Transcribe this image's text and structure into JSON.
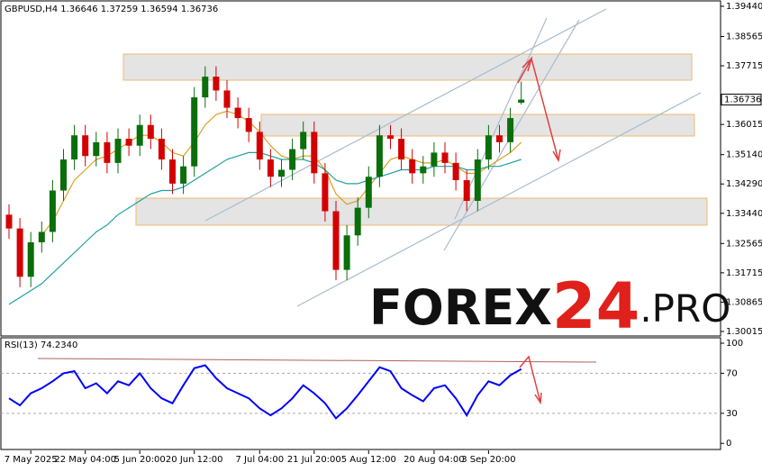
{
  "chart_data": [
    {
      "type": "candlestick",
      "title": "GBPUSD,H4  1.36646 1.37259 1.36594 1.36736",
      "categories": [
        null,
        null,
        "7 May 2025",
        null,
        null,
        null,
        null,
        "22 May 04:00",
        null,
        null,
        null,
        null,
        "5 Jun 20:00",
        null,
        null,
        null,
        null,
        "20 Jun 12:00",
        null,
        null,
        null,
        null,
        null,
        "7 Jul 04:00",
        null,
        null,
        null,
        null,
        "21 Jul 20:00",
        null,
        null,
        null,
        null,
        "5 Aug 12:00",
        null,
        null,
        null,
        null,
        null,
        "20 Aug 04:00",
        null,
        null,
        null,
        null,
        "3 Sep 20:00",
        null,
        null,
        null
      ],
      "open": [
        1.334,
        1.33,
        1.316,
        1.326,
        1.329,
        1.341,
        1.35,
        1.357,
        1.351,
        1.355,
        1.349,
        1.356,
        1.354,
        1.36,
        1.356,
        1.35,
        1.343,
        1.348,
        1.368,
        1.374,
        1.37,
        1.365,
        1.362,
        1.358,
        1.35,
        1.345,
        1.347,
        1.353,
        1.358,
        1.346,
        1.335,
        1.318,
        1.328,
        1.336,
        1.345,
        1.357,
        1.356,
        1.35,
        1.346,
        1.348,
        1.352,
        1.349,
        1.344,
        1.338,
        1.35,
        1.357,
        1.355,
        1.36646
      ],
      "high": [
        1.337,
        1.333,
        1.329,
        1.332,
        1.344,
        1.353,
        1.36,
        1.36,
        1.358,
        1.358,
        1.359,
        1.359,
        1.363,
        1.363,
        1.359,
        1.353,
        1.351,
        1.371,
        1.377,
        1.377,
        1.373,
        1.368,
        1.365,
        1.361,
        1.353,
        1.35,
        1.356,
        1.361,
        1.361,
        1.349,
        1.338,
        1.331,
        1.339,
        1.348,
        1.36,
        1.36,
        1.359,
        1.353,
        1.351,
        1.355,
        1.355,
        1.352,
        1.347,
        1.353,
        1.36,
        1.36,
        1.365,
        1.37259
      ],
      "low": [
        1.327,
        1.313,
        1.313,
        1.323,
        1.326,
        1.338,
        1.347,
        1.348,
        1.348,
        1.346,
        1.346,
        1.351,
        1.351,
        1.353,
        1.347,
        1.34,
        1.34,
        1.345,
        1.365,
        1.367,
        1.362,
        1.359,
        1.355,
        1.347,
        1.342,
        1.342,
        1.344,
        1.35,
        1.343,
        1.332,
        1.315,
        1.315,
        1.325,
        1.333,
        1.342,
        1.353,
        1.347,
        1.343,
        1.343,
        1.345,
        1.346,
        1.341,
        1.335,
        1.335,
        1.347,
        1.352,
        1.352,
        1.36594
      ],
      "close": [
        1.33,
        1.316,
        1.326,
        1.329,
        1.341,
        1.35,
        1.357,
        1.351,
        1.355,
        1.349,
        1.356,
        1.354,
        1.36,
        1.356,
        1.35,
        1.343,
        1.348,
        1.368,
        1.374,
        1.37,
        1.365,
        1.362,
        1.358,
        1.35,
        1.345,
        1.347,
        1.353,
        1.358,
        1.346,
        1.335,
        1.318,
        1.328,
        1.336,
        1.345,
        1.357,
        1.356,
        1.35,
        1.346,
        1.348,
        1.352,
        1.349,
        1.344,
        1.338,
        1.35,
        1.357,
        1.355,
        1.362,
        1.36736
      ],
      "up_color": "#0a6e0a",
      "down_color": "#d40000",
      "series": [
        {
          "color": "#d9a020",
          "values": [
            null,
            null,
            null,
            1.328,
            1.332,
            1.338,
            1.344,
            1.347,
            1.35,
            1.351,
            1.353,
            1.355,
            1.357,
            1.357,
            1.355,
            1.352,
            1.351,
            1.355,
            1.36,
            1.363,
            1.364,
            1.363,
            1.361,
            1.358,
            1.354,
            1.351,
            1.35,
            1.351,
            1.351,
            1.347,
            1.34,
            1.337,
            1.338,
            1.342,
            1.346,
            1.35,
            1.351,
            1.35,
            1.349,
            1.349,
            1.35,
            1.348,
            1.346,
            1.346,
            1.348,
            1.35,
            1.352,
            1.355
          ]
        },
        {
          "color": "#20a0a0",
          "values": [
            1.308,
            1.31,
            1.312,
            1.314,
            1.317,
            1.32,
            1.323,
            1.326,
            1.329,
            1.331,
            1.334,
            1.336,
            1.338,
            1.34,
            1.341,
            1.341,
            1.342,
            1.344,
            1.346,
            1.348,
            1.35,
            1.351,
            1.352,
            1.352,
            1.351,
            1.35,
            1.35,
            1.35,
            1.349,
            1.347,
            1.344,
            1.343,
            1.343,
            1.344,
            1.345,
            1.346,
            1.347,
            1.347,
            1.347,
            1.348,
            1.348,
            1.348,
            1.347,
            1.347,
            1.348,
            1.348,
            1.349,
            1.35
          ]
        }
      ],
      "ylim": [
        1.2991,
        1.3957
      ],
      "yticks": [
        {
          "value": 1.3944,
          "label": "1.39440"
        },
        {
          "value": 1.38565,
          "label": "1.38565"
        },
        {
          "value": 1.37715,
          "label": "1.37715"
        },
        {
          "value": 1.36015,
          "label": "1.36015"
        },
        {
          "value": 1.3514,
          "label": "1.35140"
        },
        {
          "value": 1.3429,
          "label": "1.34290"
        },
        {
          "value": 1.3344,
          "label": "1.33440"
        },
        {
          "value": 1.32565,
          "label": "1.32565"
        },
        {
          "value": 1.31715,
          "label": "1.31715"
        },
        {
          "value": 1.30865,
          "label": "1.30865"
        },
        {
          "value": 1.30015,
          "label": "1.30015"
        }
      ],
      "price_tag": {
        "value": 1.36736,
        "label": "1.36736"
      }
    },
    {
      "type": "line",
      "title": "RSI(13) 74.2340",
      "series": [
        {
          "color": "#0000ff",
          "values": [
            45,
            38,
            50,
            55,
            62,
            70,
            72,
            55,
            60,
            50,
            62,
            58,
            70,
            55,
            45,
            40,
            58,
            75,
            78,
            65,
            55,
            50,
            45,
            35,
            28,
            35,
            45,
            58,
            50,
            40,
            25,
            35,
            48,
            62,
            76,
            72,
            55,
            48,
            42,
            55,
            58,
            45,
            28,
            48,
            62,
            58,
            68,
            74.234
          ]
        }
      ],
      "ylim": [
        -7,
        105.4
      ],
      "yticks": [
        100,
        70,
        30,
        0
      ],
      "levels": [
        70,
        30
      ]
    }
  ],
  "watermark": [
    "FOREX",
    "24",
    ".PRO"
  ]
}
